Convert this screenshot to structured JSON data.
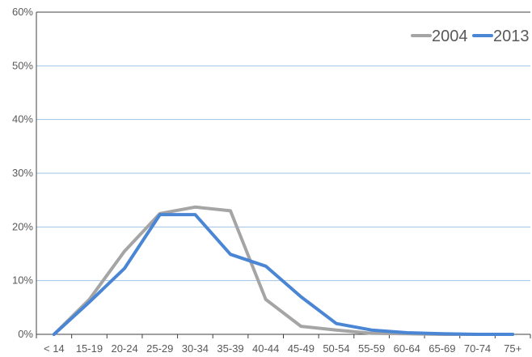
{
  "chart_data": {
    "type": "line",
    "title": "",
    "xlabel": "",
    "ylabel": "",
    "categories": [
      "< 14",
      "15-19",
      "20-24",
      "25-29",
      "30-34",
      "35-39",
      "40-44",
      "45-49",
      "50-54",
      "55-59",
      "60-64",
      "65-69",
      "70-74",
      "75+"
    ],
    "y_tick_labels": [
      "0%",
      "10%",
      "20%",
      "30%",
      "40%",
      "50%",
      "60%"
    ],
    "ylim": [
      0,
      60
    ],
    "grid": true,
    "legend_position": "top-right",
    "series": [
      {
        "name": "2004",
        "color": "#a5a5a5",
        "values": [
          0,
          6.5,
          15.5,
          22.5,
          23.7,
          23.0,
          6.5,
          1.5,
          0.8,
          0.2,
          0.1,
          0,
          0,
          0
        ]
      },
      {
        "name": "2013",
        "color": "#4a86d4",
        "values": [
          0,
          6.0,
          12.3,
          22.3,
          22.3,
          14.9,
          12.7,
          7.0,
          2.0,
          0.8,
          0.3,
          0.1,
          0,
          0
        ]
      }
    ]
  }
}
